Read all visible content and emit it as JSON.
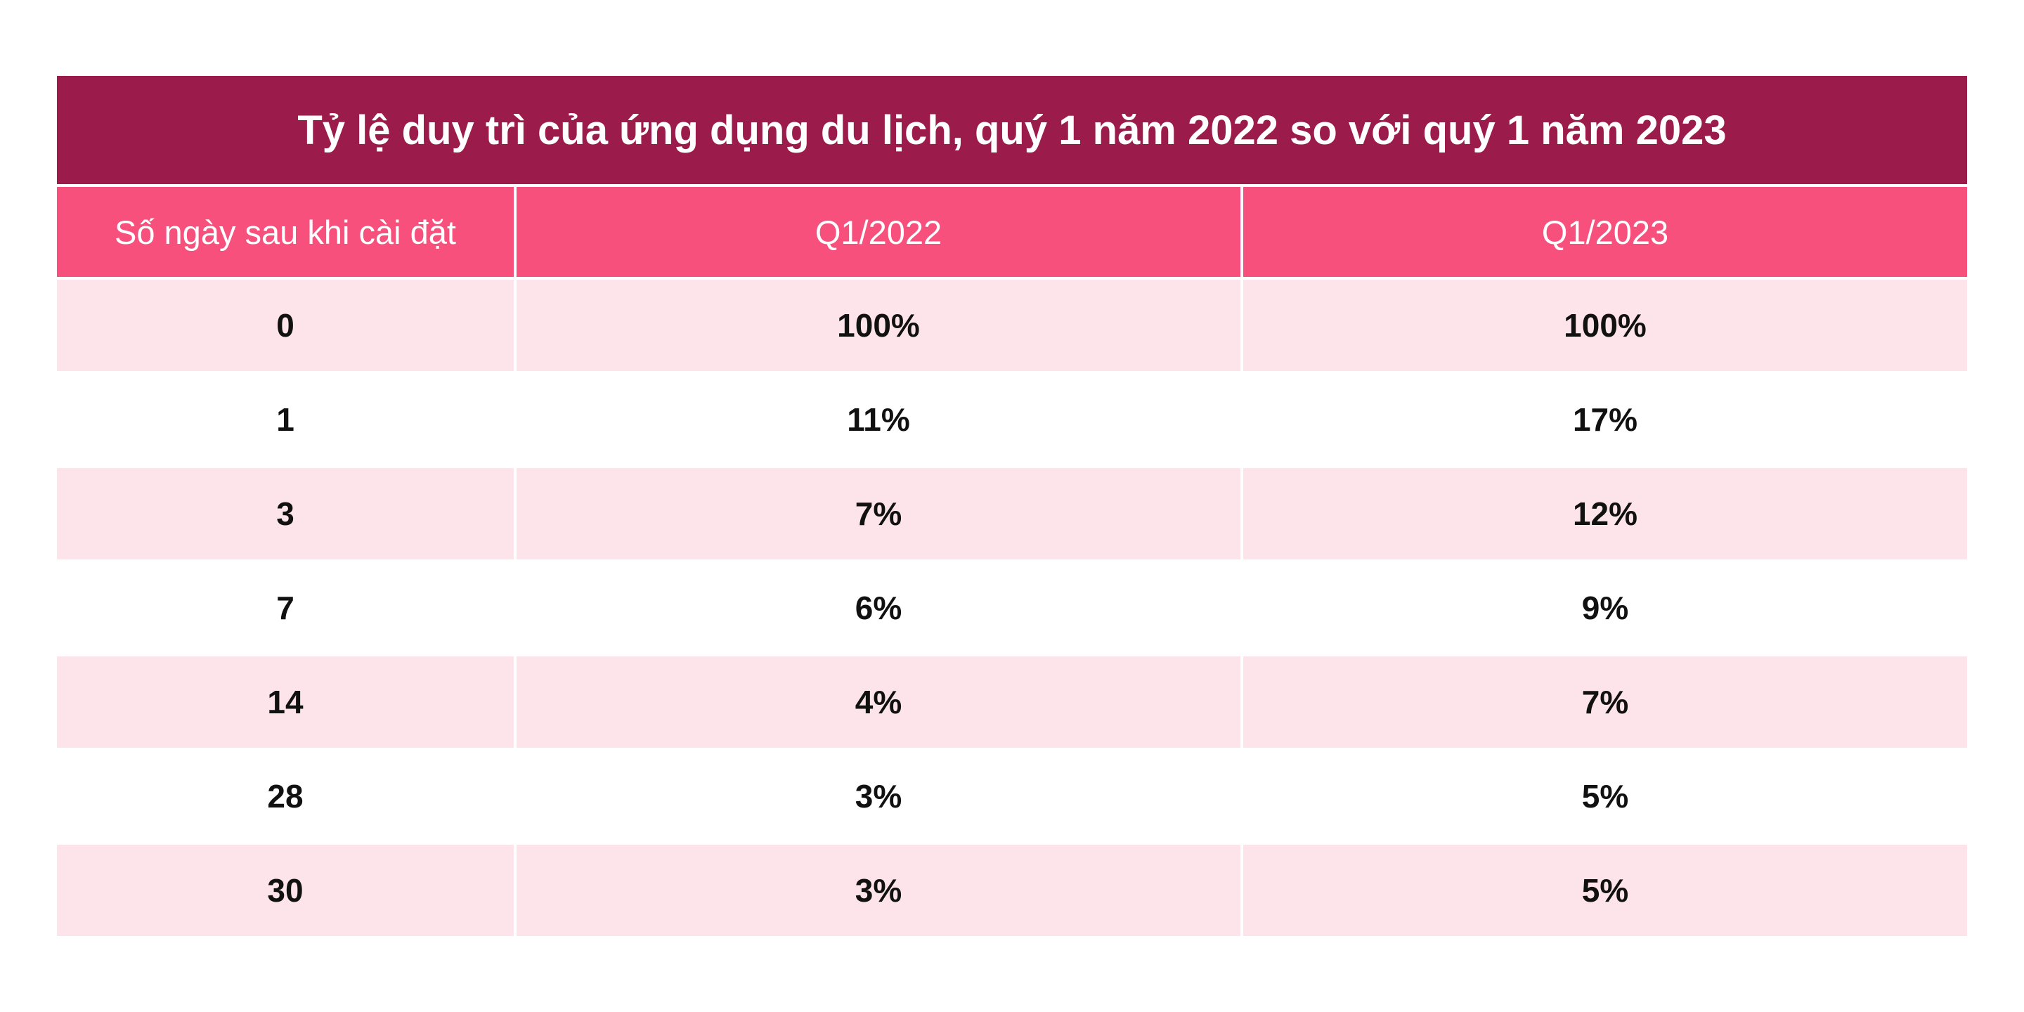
{
  "chart_data": {
    "type": "table",
    "title": "Tỷ lệ duy trì của ứng dụng du lịch, quý 1 năm 2022 so với quý 1 năm 2023",
    "columns": [
      "Số ngày sau khi cài đặt",
      "Q1/2022",
      "Q1/2023"
    ],
    "rows": [
      [
        "0",
        "100%",
        "100%"
      ],
      [
        "1",
        "11%",
        "17%"
      ],
      [
        "3",
        "7%",
        "12%"
      ],
      [
        "7",
        "6%",
        "9%"
      ],
      [
        "14",
        "4%",
        "7%"
      ],
      [
        "28",
        "3%",
        "5%"
      ],
      [
        "30",
        "3%",
        "5%"
      ]
    ],
    "x": [
      0,
      1,
      3,
      7,
      14,
      28,
      30
    ],
    "series": [
      {
        "name": "Q1/2022",
        "values": [
          100,
          11,
          7,
          6,
          4,
          3,
          3
        ]
      },
      {
        "name": "Q1/2023",
        "values": [
          100,
          17,
          12,
          9,
          7,
          5,
          5
        ]
      }
    ]
  },
  "colors": {
    "title_bg": "#9b1b4a",
    "header_bg": "#f7507c",
    "stripe_bg": "#fde4ea",
    "plain_bg": "#ffffff"
  }
}
